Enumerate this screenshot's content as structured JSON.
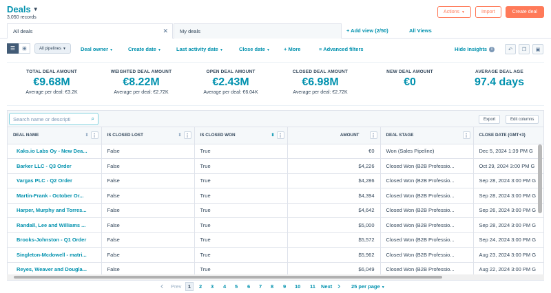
{
  "header": {
    "title": "Deals",
    "records": "3,050 records",
    "actions_label": "Actions",
    "import_label": "Import",
    "create_label": "Create deal"
  },
  "tabs": {
    "all_deals": "All deals",
    "my_deals": "My deals",
    "add_view": "+ Add view (2/50)",
    "all_views": "All Views"
  },
  "filters": {
    "pipeline": "All pipelines",
    "deal_owner": "Deal owner",
    "create_date": "Create date",
    "last_activity": "Last activity date",
    "close_date": "Close date",
    "more": "+ More",
    "advanced": "Advanced filters",
    "hide_insights": "Hide Insights"
  },
  "insights": [
    {
      "label": "TOTAL DEAL AMOUNT",
      "value": "€9.68M",
      "sub": "Average per deal: €3.2K"
    },
    {
      "label": "WEIGHTED DEAL AMOUNT",
      "value": "€8.22M",
      "sub": "Average per deal: €2.72K"
    },
    {
      "label": "OPEN DEAL AMOUNT",
      "value": "€2.43M",
      "sub": "Average per deal: €6.04K"
    },
    {
      "label": "CLOSED DEAL AMOUNT",
      "value": "€6.98M",
      "sub": "Average per deal: €2.72K"
    },
    {
      "label": "NEW DEAL AMOUNT",
      "value": "€0",
      "sub": ""
    },
    {
      "label": "AVERAGE DEAL AGE",
      "value": "97.4 days",
      "sub": ""
    }
  ],
  "table": {
    "search_placeholder": "Search name or descripti",
    "export_label": "Export",
    "edit_columns_label": "Edit columns",
    "columns": [
      "DEAL NAME",
      "IS CLOSED LOST",
      "IS CLOSED WON",
      "AMOUNT",
      "DEAL STAGE",
      "CLOSE DATE (GMT+3)"
    ],
    "rows": [
      [
        "Kaks.io Labs Oy - New Dea...",
        "False",
        "True",
        "€0",
        "Won (Sales Pipeline)",
        "Dec 5, 2024 1:39 PM G"
      ],
      [
        "Barker LLC - Q3 Order",
        "False",
        "True",
        "$4,226",
        "Closed Won (B2B Professio...",
        "Oct 29, 2024 3:00 PM G"
      ],
      [
        "Vargas PLC - Q2 Order",
        "False",
        "True",
        "$4,286",
        "Closed Won (B2B Professio...",
        "Sep 28, 2024 3:00 PM G"
      ],
      [
        "Martin-Frank - October Or...",
        "False",
        "True",
        "$4,394",
        "Closed Won (B2B Professio...",
        "Sep 28, 2024 3:00 PM G"
      ],
      [
        "Harper, Murphy and Torres...",
        "False",
        "True",
        "$4,642",
        "Closed Won (B2B Professio...",
        "Sep 26, 2024 3:00 PM G"
      ],
      [
        "Randall, Lee and Williams ...",
        "False",
        "True",
        "$5,000",
        "Closed Won (B2B Professio...",
        "Sep 28, 2024 3:00 PM G"
      ],
      [
        "Brooks-Johnston - Q1 Order",
        "False",
        "True",
        "$5,572",
        "Closed Won (B2B Professio...",
        "Sep 24, 2024 3:00 PM G"
      ],
      [
        "Singleton-Mcdowell - matri...",
        "False",
        "True",
        "$5,962",
        "Closed Won (B2B Professio...",
        "Aug 23, 2024 3:00 PM G"
      ],
      [
        "Reyes, Weaver and Dougla...",
        "False",
        "True",
        "$6,049",
        "Closed Won (B2B Professio...",
        "Aug 22, 2024 3:00 PM G"
      ]
    ]
  },
  "pagination": {
    "prev": "Prev",
    "pages": [
      "1",
      "2",
      "3",
      "4",
      "5",
      "6",
      "7",
      "8",
      "9",
      "10",
      "11"
    ],
    "current": "1",
    "next": "Next",
    "per_page": "25 per page"
  }
}
